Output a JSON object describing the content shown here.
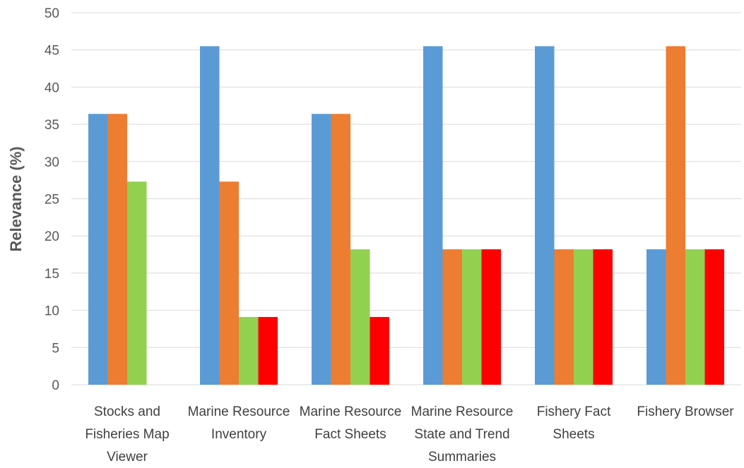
{
  "chart_data": {
    "type": "bar",
    "ylabel": "Relevance (%)",
    "xlabel": "",
    "ylim": [
      0,
      50
    ],
    "yticks": [
      0,
      5,
      10,
      15,
      20,
      25,
      30,
      35,
      40,
      45,
      50
    ],
    "grid": true,
    "legend": "none",
    "categories": [
      [
        "Stocks and",
        "Fisheries Map",
        "Viewer"
      ],
      [
        "Marine Resource",
        "Inventory"
      ],
      [
        "Marine Resource",
        "Fact Sheets"
      ],
      [
        "Marine Resource",
        "State and Trend",
        "Summaries"
      ],
      [
        "Fishery Fact",
        "Sheets"
      ],
      [
        "Fishery Browser"
      ]
    ],
    "series": [
      {
        "color": "#5b9bd5",
        "values": [
          36.4,
          45.5,
          36.4,
          45.5,
          45.5,
          18.2
        ]
      },
      {
        "color": "#ed7d31",
        "values": [
          36.4,
          27.3,
          36.4,
          18.2,
          18.2,
          45.5
        ]
      },
      {
        "color": "#92d050",
        "values": [
          27.3,
          9.1,
          18.2,
          18.2,
          18.2,
          18.2
        ]
      },
      {
        "color": "#ff0000",
        "values": [
          0,
          9.1,
          9.1,
          18.2,
          18.2,
          18.2
        ]
      }
    ]
  }
}
